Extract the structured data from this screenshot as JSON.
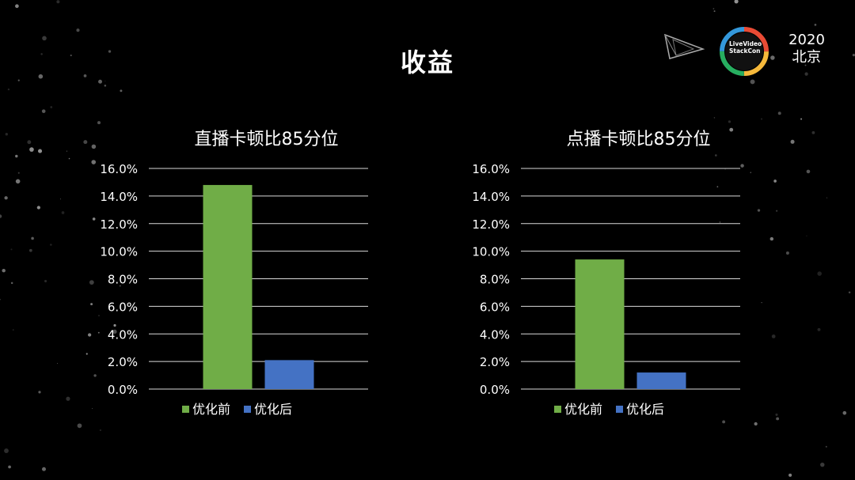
{
  "slide": {
    "title": "收益",
    "event": {
      "year": "2020",
      "city": "北京",
      "logo_line1": "LiveVideo",
      "logo_line2": "StackCon"
    }
  },
  "colors": {
    "before": "#70ad47",
    "after": "#4472c4",
    "grid": "#d9d9d9",
    "text": "#ffffff",
    "background": "#000000"
  },
  "icons": {
    "corner_logo": "triangle-play-icon",
    "event_logo": "livevideostackcon-ring-logo"
  },
  "chart_data": [
    {
      "type": "bar",
      "title": "直播卡顿比85分位",
      "categories": [
        ""
      ],
      "series": [
        {
          "name": "优化前",
          "values": [
            14.8
          ]
        },
        {
          "name": "优化后",
          "values": [
            2.1
          ]
        }
      ],
      "ylim": [
        0,
        16
      ],
      "yticks": [
        "0.0%",
        "2.0%",
        "4.0%",
        "6.0%",
        "8.0%",
        "10.0%",
        "12.0%",
        "14.0%",
        "16.0%"
      ],
      "xlabel": "",
      "ylabel": "",
      "grid": true,
      "legend": "bottom"
    },
    {
      "type": "bar",
      "title": "点播卡顿比85分位",
      "categories": [
        ""
      ],
      "series": [
        {
          "name": "优化前",
          "values": [
            9.4
          ]
        },
        {
          "name": "优化后",
          "values": [
            1.2
          ]
        }
      ],
      "ylim": [
        0,
        16
      ],
      "yticks": [
        "0.0%",
        "2.0%",
        "4.0%",
        "6.0%",
        "8.0%",
        "10.0%",
        "12.0%",
        "14.0%",
        "16.0%"
      ],
      "xlabel": "",
      "ylabel": "",
      "grid": true,
      "legend": "bottom"
    }
  ]
}
